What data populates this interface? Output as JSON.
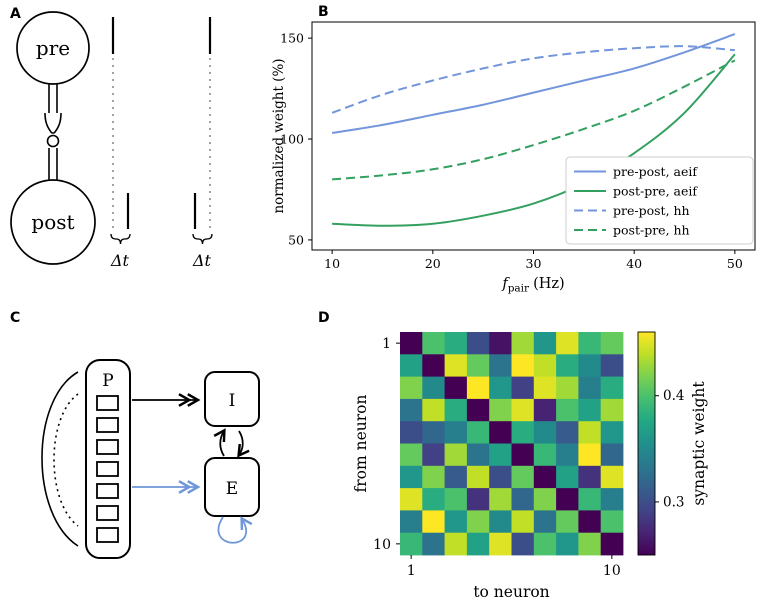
{
  "figure": {
    "background": "#ffffff",
    "panel_labels": {
      "a": "A",
      "b": "B",
      "c": "C",
      "d": "D"
    }
  },
  "panel_a": {
    "pre_label": "pre",
    "post_label": "post",
    "delta_t_left": "Δt",
    "delta_t_right": "Δt"
  },
  "panel_c": {
    "population_label": "P",
    "inhibitory_label": "I",
    "excitatory_label": "E",
    "accent_color": "#6f96d8"
  },
  "chart_data": [
    {
      "panel": "B",
      "type": "line",
      "title": "",
      "xlabel": {
        "symbol": "f",
        "subscript": "pair",
        "unit": "(Hz)"
      },
      "ylabel": "normalized weight (%)",
      "x": [
        10,
        15,
        20,
        25,
        30,
        35,
        40,
        45,
        50
      ],
      "xticks": [
        10,
        20,
        30,
        40,
        50
      ],
      "yticks": [
        50,
        100,
        150
      ],
      "xlim": [
        8,
        52
      ],
      "ylim": [
        45,
        158
      ],
      "grid": false,
      "legend_position": "lower right",
      "series": [
        {
          "name": "pre-post, aeif",
          "color": "#7295db",
          "dash": "solid",
          "values": [
            103,
            107,
            112,
            117,
            123,
            129,
            135,
            143,
            152
          ]
        },
        {
          "name": "post-pre, aeif",
          "color": "#33a05f",
          "dash": "solid",
          "values": [
            58,
            57,
            58,
            62,
            68,
            78,
            93,
            113,
            142
          ]
        },
        {
          "name": "pre-post, hh",
          "color": "#7295db",
          "dash": "dashed",
          "values": [
            113,
            122,
            129,
            135,
            140,
            143,
            145,
            146,
            144
          ]
        },
        {
          "name": "post-pre, hh",
          "color": "#33a05f",
          "dash": "dashed",
          "values": [
            80,
            82,
            85,
            90,
            97,
            105,
            114,
            126,
            139
          ]
        }
      ]
    },
    {
      "panel": "D",
      "type": "heatmap",
      "xlabel": "to neuron",
      "ylabel": "from neuron",
      "xtick_labels": [
        "1",
        "10"
      ],
      "ytick_labels": [
        "1",
        "10"
      ],
      "colorbar_label": "synaptic weight",
      "colorbar_ticks": [
        0.3,
        0.4
      ],
      "vmin": 0.25,
      "vmax": 0.46,
      "colormap": "viridis",
      "matrix": [
        [
          0.25,
          0.4,
          0.38,
          0.3,
          0.26,
          0.43,
          0.36,
          0.45,
          0.39,
          0.41
        ],
        [
          0.37,
          0.25,
          0.45,
          0.41,
          0.33,
          0.46,
          0.44,
          0.38,
          0.35,
          0.3
        ],
        [
          0.42,
          0.35,
          0.25,
          0.46,
          0.36,
          0.29,
          0.45,
          0.43,
          0.34,
          0.38
        ],
        [
          0.33,
          0.44,
          0.38,
          0.25,
          0.42,
          0.45,
          0.27,
          0.4,
          0.37,
          0.43
        ],
        [
          0.3,
          0.32,
          0.34,
          0.39,
          0.25,
          0.38,
          0.35,
          0.31,
          0.44,
          0.36
        ],
        [
          0.41,
          0.29,
          0.43,
          0.33,
          0.37,
          0.25,
          0.39,
          0.34,
          0.46,
          0.32
        ],
        [
          0.36,
          0.42,
          0.31,
          0.44,
          0.3,
          0.41,
          0.25,
          0.37,
          0.28,
          0.45
        ],
        [
          0.45,
          0.38,
          0.4,
          0.28,
          0.43,
          0.32,
          0.42,
          0.25,
          0.39,
          0.34
        ],
        [
          0.34,
          0.46,
          0.36,
          0.42,
          0.35,
          0.44,
          0.33,
          0.41,
          0.25,
          0.4
        ],
        [
          0.39,
          0.33,
          0.44,
          0.37,
          0.45,
          0.3,
          0.4,
          0.36,
          0.42,
          0.25
        ]
      ]
    }
  ]
}
